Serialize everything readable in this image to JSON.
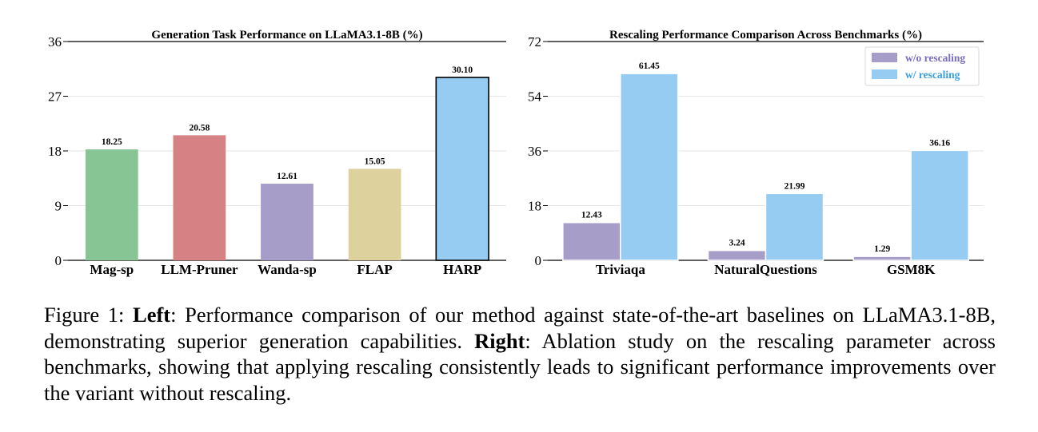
{
  "chart_data": [
    {
      "type": "bar",
      "title": "Generation Task Performance on LLaMA3.1-8B (%)",
      "categories": [
        "Mag-sp",
        "LLM-Pruner",
        "Wanda-sp",
        "FLAP",
        "HARP"
      ],
      "values": [
        18.25,
        20.58,
        12.61,
        15.05,
        30.1
      ],
      "value_labels": [
        "18.25",
        "20.58",
        "12.61",
        "15.05",
        "30.10"
      ],
      "colors": [
        "#88c595",
        "#d68285",
        "#a69dc9",
        "#ddd19e",
        "#96cbf2"
      ],
      "highlight": "HARP",
      "ylim": [
        0,
        36
      ],
      "yticks": [
        0,
        9,
        18,
        27,
        36
      ],
      "grid": true
    },
    {
      "type": "bar",
      "title": "Rescaling Performance Comparison Across Benchmarks (%)",
      "categories": [
        "Triviaqa",
        "NaturalQuestions",
        "GSM8K"
      ],
      "series": [
        {
          "name": "w/o rescaling",
          "values": [
            12.43,
            3.24,
            1.29
          ],
          "value_labels": [
            "12.43",
            "3.24",
            "1.29"
          ],
          "color": "#a69dc9",
          "text_color": "#7b6bbd"
        },
        {
          "name": "w/ rescaling",
          "values": [
            61.45,
            21.99,
            36.16
          ],
          "value_labels": [
            "61.45",
            "21.99",
            "36.16"
          ],
          "color": "#96cbf2",
          "text_color": "#3a9ee0"
        }
      ],
      "ylim": [
        0,
        72
      ],
      "yticks": [
        0,
        18,
        36,
        54,
        72
      ],
      "legend": "top-right",
      "grid": true
    }
  ],
  "caption": {
    "figure_label": "Figure 1:",
    "left_label": "Left",
    "left_text": ": Performance comparison of our method against state-of-the-art baselines on LLaMA3.1-8B, demonstrating superior generation capabilities. ",
    "right_label": "Right",
    "right_text": ": Ablation study on the rescaling parameter across benchmarks, showing that applying rescaling consistently leads to significant performance improvements over the variant without rescaling."
  }
}
